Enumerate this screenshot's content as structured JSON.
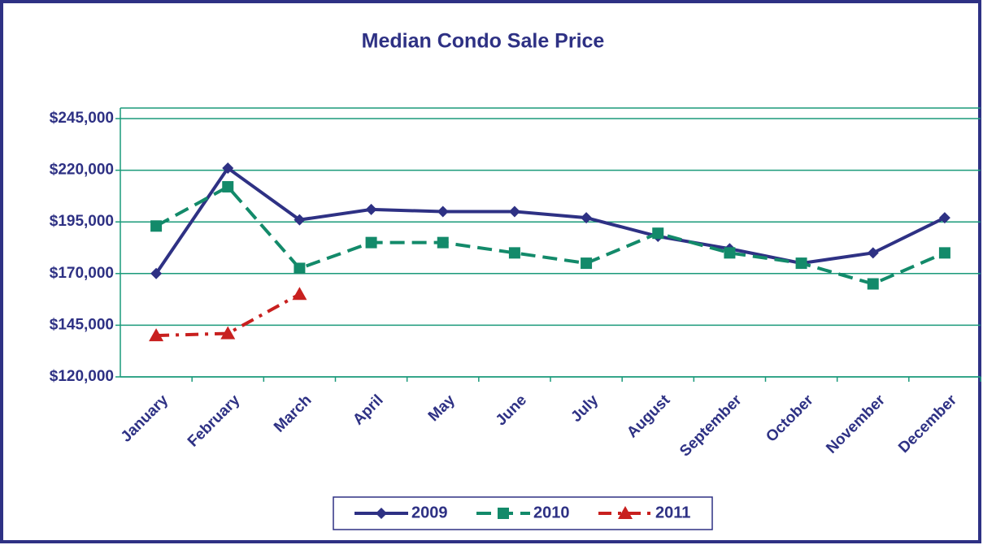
{
  "chart_data": {
    "type": "line",
    "title": "Median Condo Sale Price",
    "categories": [
      "January",
      "February",
      "March",
      "April",
      "May",
      "June",
      "July",
      "August",
      "September",
      "October",
      "November",
      "December"
    ],
    "series": [
      {
        "name": "2009",
        "color": "#2e3184",
        "dash": "solid",
        "marker": "diamond",
        "values": [
          170000,
          221000,
          196000,
          201000,
          200000,
          200000,
          197000,
          188000,
          182000,
          175000,
          180000,
          197000
        ]
      },
      {
        "name": "2010",
        "color": "#138a6a",
        "dash": "dashed",
        "marker": "square",
        "values": [
          193000,
          212000,
          172500,
          185000,
          185000,
          180000,
          175000,
          189500,
          180000,
          175000,
          165000,
          180000
        ]
      },
      {
        "name": "2011",
        "color": "#c8201f",
        "dash": "dashdot",
        "marker": "triangle",
        "values": [
          140000,
          141000,
          160000,
          null,
          null,
          null,
          null,
          null,
          null,
          null,
          null,
          null
        ]
      }
    ],
    "ylim": [
      120000,
      245000
    ],
    "yticks": [
      {
        "value": 120000,
        "label": "$120,000"
      },
      {
        "value": 145000,
        "label": "$145,000"
      },
      {
        "value": 170000,
        "label": "$170,000"
      },
      {
        "value": 195000,
        "label": "$195,000"
      },
      {
        "value": 220000,
        "label": "$220,000"
      },
      {
        "value": 245000,
        "label": "$245,000"
      }
    ],
    "grid": true,
    "legend": "bottom"
  }
}
